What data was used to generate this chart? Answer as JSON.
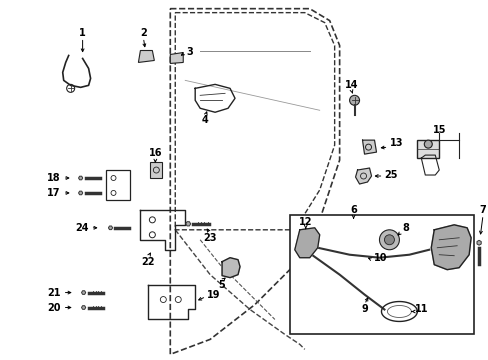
{
  "background_color": "#ffffff",
  "fig_width": 4.89,
  "fig_height": 3.6,
  "dpi": 100,
  "label_fontsize": 7.0,
  "leader_color": "#000000",
  "text_color": "#000000"
}
